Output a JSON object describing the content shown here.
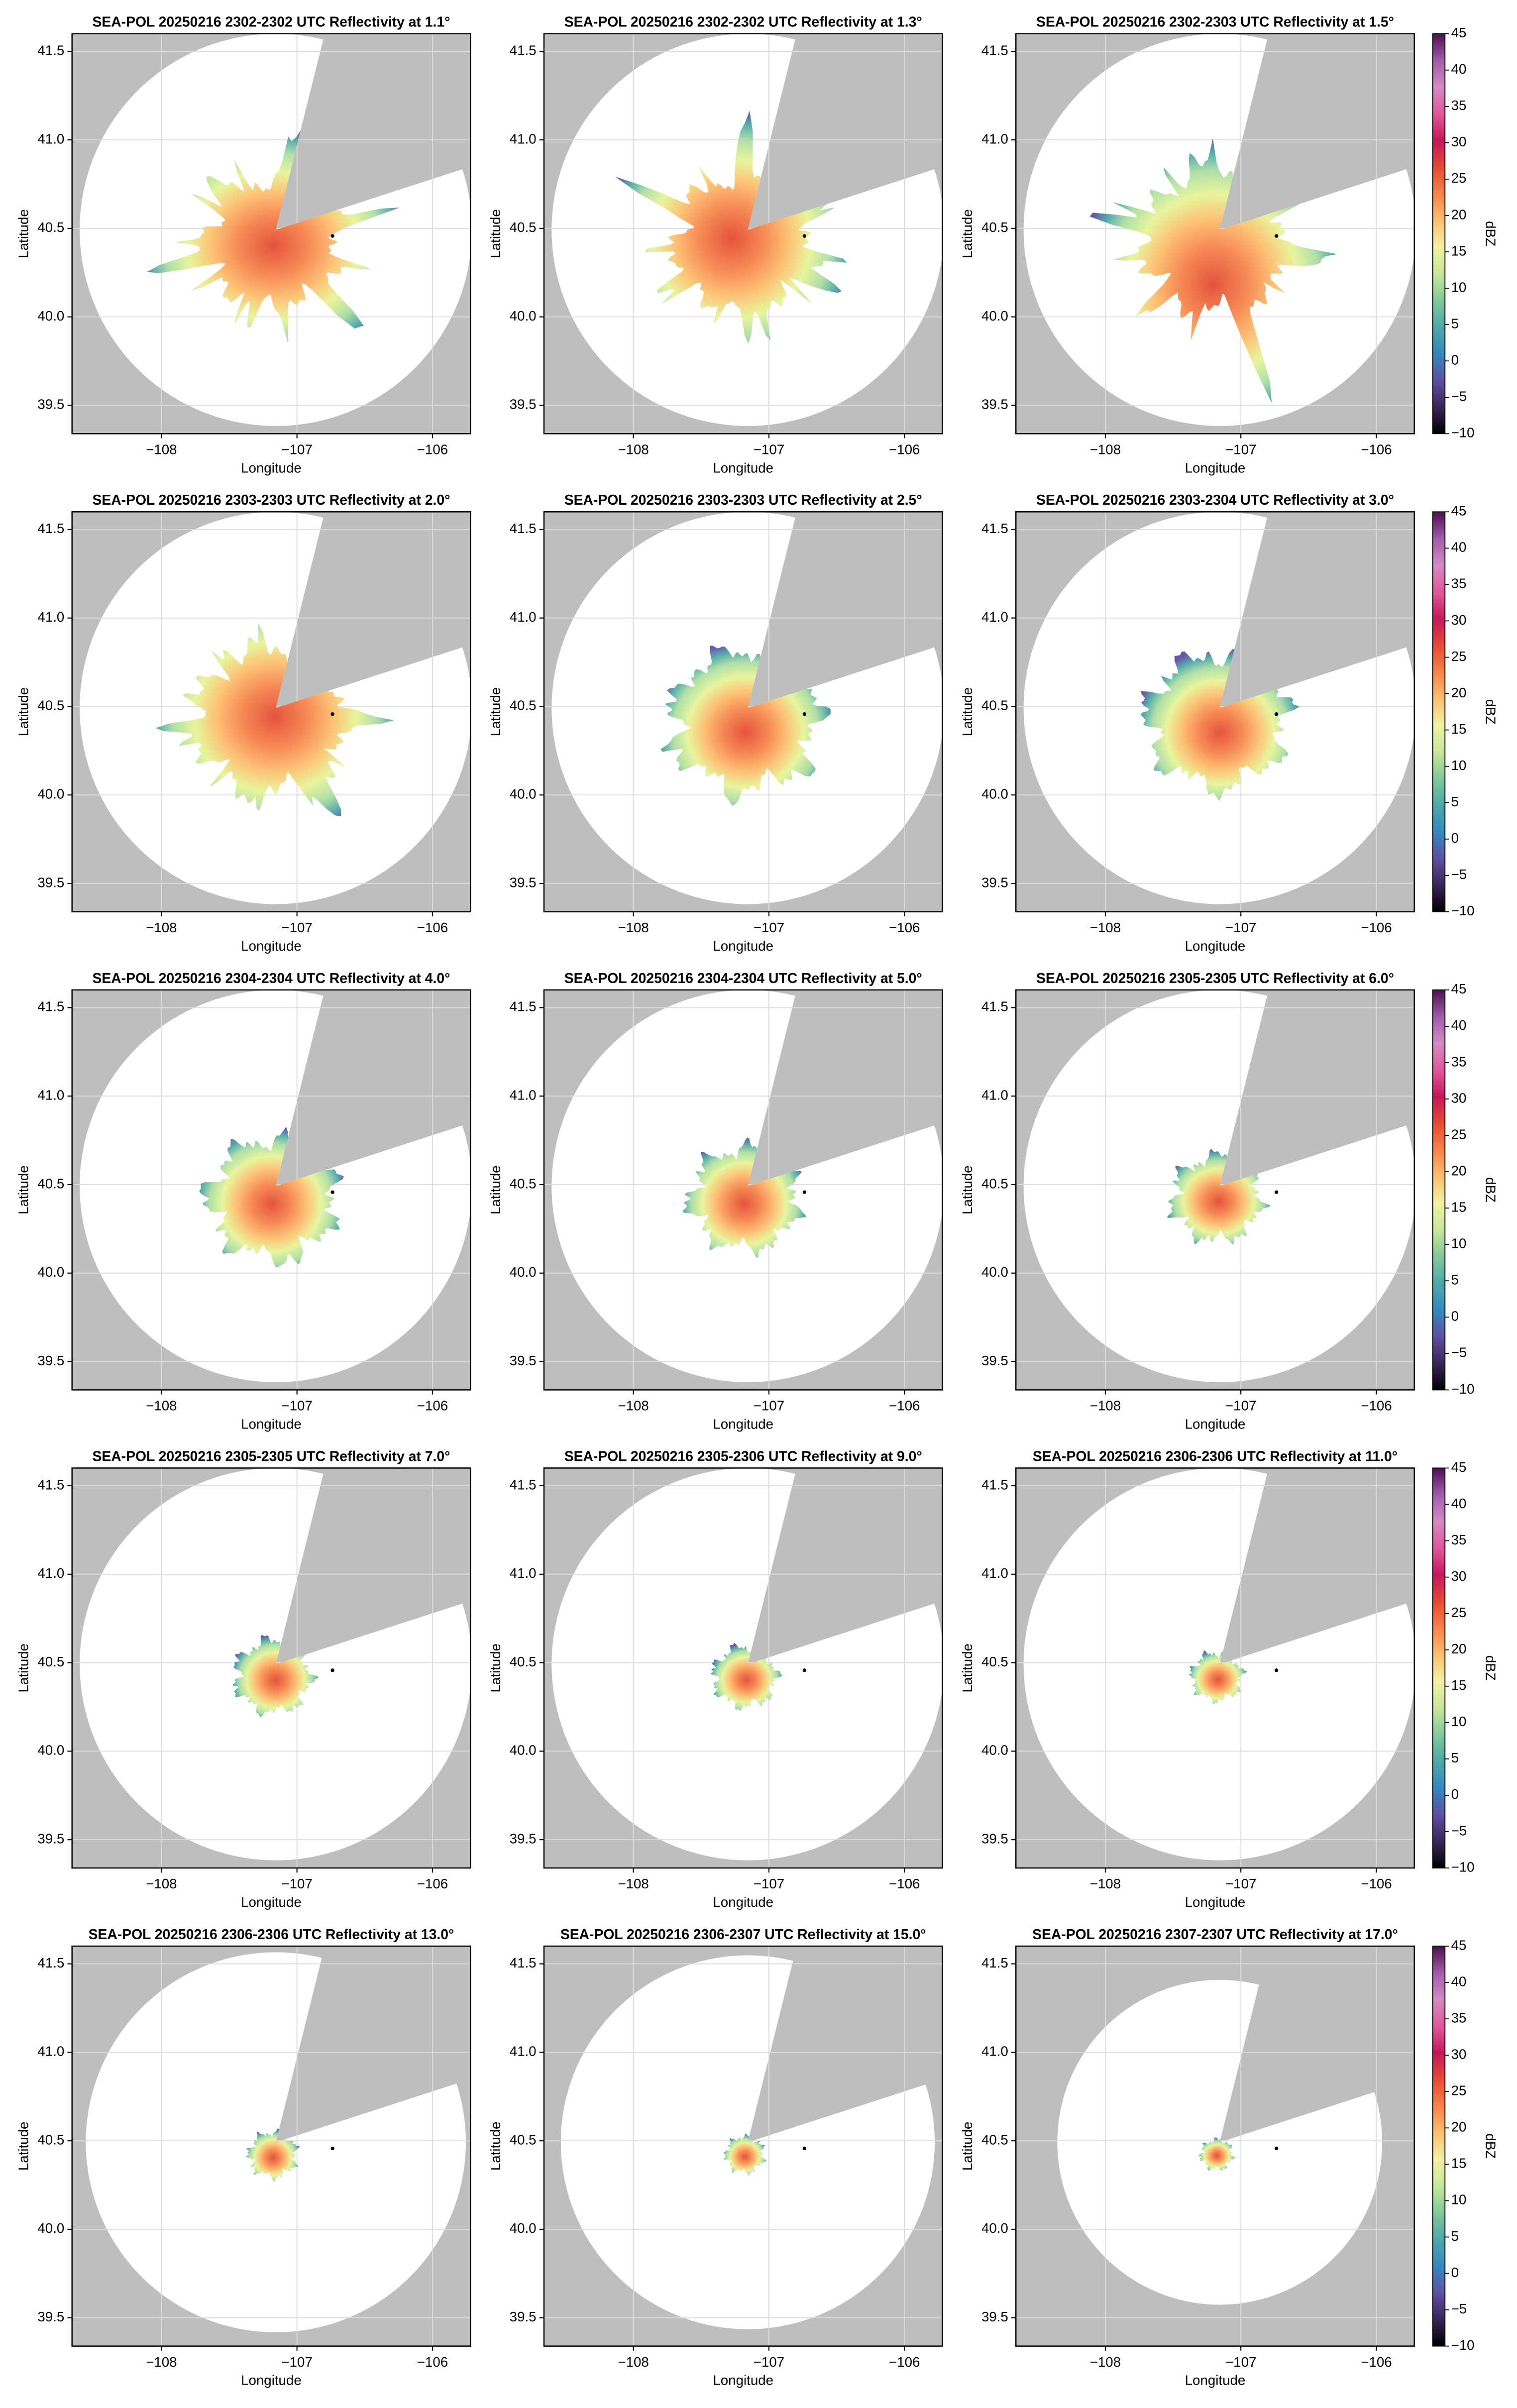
{
  "chart_data": [
    {
      "type": "radar-ppi",
      "title": "SEA-POL 20250216 2302-2302 UTC Reflectivity at 1.1°",
      "xlabel": "Longitude",
      "ylabel": "Latitude",
      "xlim": [
        -108.66,
        -105.72
      ],
      "ylim": [
        39.34,
        41.6
      ],
      "xticks": [
        {
          "value": -108,
          "label": "−108"
        },
        {
          "value": -107,
          "label": "−107"
        },
        {
          "value": -106,
          "label": "−106"
        }
      ],
      "yticks": [
        39.5,
        {
          "value": 40,
          "label": "40.0"
        },
        40.5,
        {
          "value": 41,
          "label": "41.0"
        },
        41.5
      ],
      "grid": true
    },
    {
      "type": "radar-ppi",
      "title": "SEA-POL 20250216 2302-2302 UTC Reflectivity at 1.3°",
      "xlabel": "Longitude",
      "ylabel": "Latitude",
      "xlim": [
        -108.66,
        -105.72
      ],
      "ylim": [
        39.34,
        41.6
      ],
      "xticks": [
        {
          "value": -108,
          "label": "−108"
        },
        {
          "value": -107,
          "label": "−107"
        },
        {
          "value": -106,
          "label": "−106"
        }
      ],
      "yticks": [
        39.5,
        {
          "value": 40,
          "label": "40.0"
        },
        40.5,
        {
          "value": 41,
          "label": "41.0"
        },
        41.5
      ],
      "grid": true
    },
    {
      "type": "radar-ppi",
      "title": "SEA-POL 20250216 2302-2303 UTC Reflectivity at 1.5°",
      "xlabel": "Longitude",
      "ylabel": "Latitude",
      "xlim": [
        -108.66,
        -105.72
      ],
      "ylim": [
        39.34,
        41.6
      ],
      "xticks": [
        {
          "value": -108,
          "label": "−108"
        },
        {
          "value": -107,
          "label": "−107"
        },
        {
          "value": -106,
          "label": "−106"
        }
      ],
      "yticks": [
        39.5,
        {
          "value": 40,
          "label": "40.0"
        },
        40.5,
        {
          "value": 41,
          "label": "41.0"
        },
        41.5
      ],
      "grid": true,
      "colorbar": {
        "label": "dBZ",
        "lim": [
          -10,
          45
        ],
        "ticks": [
          {
            "value": -10,
            "label": "−10"
          },
          {
            "value": -5,
            "label": "−5"
          },
          0,
          5,
          10,
          15,
          20,
          25,
          30,
          35,
          40,
          45
        ],
        "colors": [
          "#000000",
          "#3a2558",
          "#5e4fa2",
          "#3288bd",
          "#4fa8a8",
          "#85c99a",
          "#c8e79c",
          "#f1f3a6",
          "#fdc070",
          "#f6844c",
          "#e34a33",
          "#c2185b",
          "#e0589a",
          "#d48bc6",
          "#a05ba8",
          "#4b1150"
        ]
      }
    },
    {
      "type": "radar-ppi",
      "title": "SEA-POL 20250216 2303-2303 UTC Reflectivity at 2.0°",
      "xlabel": "Longitude",
      "ylabel": "Latitude",
      "xlim": [
        -108.66,
        -105.72
      ],
      "ylim": [
        39.34,
        41.6
      ],
      "xticks": [
        {
          "value": -108,
          "label": "−108"
        },
        {
          "value": -107,
          "label": "−107"
        },
        {
          "value": -106,
          "label": "−106"
        }
      ],
      "yticks": [
        39.5,
        {
          "value": 40,
          "label": "40.0"
        },
        40.5,
        {
          "value": 41,
          "label": "41.0"
        },
        41.5
      ],
      "grid": true
    },
    {
      "type": "radar-ppi",
      "title": "SEA-POL 20250216 2303-2303 UTC Reflectivity at 2.5°",
      "xlabel": "Longitude",
      "ylabel": "Latitude",
      "xlim": [
        -108.66,
        -105.72
      ],
      "ylim": [
        39.34,
        41.6
      ],
      "xticks": [
        {
          "value": -108,
          "label": "−108"
        },
        {
          "value": -107,
          "label": "−107"
        },
        {
          "value": -106,
          "label": "−106"
        }
      ],
      "yticks": [
        39.5,
        {
          "value": 40,
          "label": "40.0"
        },
        40.5,
        {
          "value": 41,
          "label": "41.0"
        },
        41.5
      ],
      "grid": true
    },
    {
      "type": "radar-ppi",
      "title": "SEA-POL 20250216 2303-2304 UTC Reflectivity at 3.0°",
      "xlabel": "Longitude",
      "ylabel": "Latitude",
      "xlim": [
        -108.66,
        -105.72
      ],
      "ylim": [
        39.34,
        41.6
      ],
      "xticks": [
        {
          "value": -108,
          "label": "−108"
        },
        {
          "value": -107,
          "label": "−107"
        },
        {
          "value": -106,
          "label": "−106"
        }
      ],
      "yticks": [
        39.5,
        {
          "value": 40,
          "label": "40.0"
        },
        40.5,
        {
          "value": 41,
          "label": "41.0"
        },
        41.5
      ],
      "grid": true,
      "colorbar": {
        "label": "dBZ",
        "lim": [
          -10,
          45
        ],
        "ticks": [
          {
            "value": -10,
            "label": "−10"
          },
          {
            "value": -5,
            "label": "−5"
          },
          0,
          5,
          10,
          15,
          20,
          25,
          30,
          35,
          40,
          45
        ],
        "colors": [
          "#000000",
          "#3a2558",
          "#5e4fa2",
          "#3288bd",
          "#4fa8a8",
          "#85c99a",
          "#c8e79c",
          "#f1f3a6",
          "#fdc070",
          "#f6844c",
          "#e34a33",
          "#c2185b",
          "#e0589a",
          "#d48bc6",
          "#a05ba8",
          "#4b1150"
        ]
      }
    },
    {
      "type": "radar-ppi",
      "title": "SEA-POL 20250216 2304-2304 UTC Reflectivity at 4.0°",
      "xlabel": "Longitude",
      "ylabel": "Latitude",
      "xlim": [
        -108.66,
        -105.72
      ],
      "ylim": [
        39.34,
        41.6
      ],
      "xticks": [
        {
          "value": -108,
          "label": "−108"
        },
        {
          "value": -107,
          "label": "−107"
        },
        {
          "value": -106,
          "label": "−106"
        }
      ],
      "yticks": [
        39.5,
        {
          "value": 40,
          "label": "40.0"
        },
        40.5,
        {
          "value": 41,
          "label": "41.0"
        },
        41.5
      ],
      "grid": true
    },
    {
      "type": "radar-ppi",
      "title": "SEA-POL 20250216 2304-2304 UTC Reflectivity at 5.0°",
      "xlabel": "Longitude",
      "ylabel": "Latitude",
      "xlim": [
        -108.66,
        -105.72
      ],
      "ylim": [
        39.34,
        41.6
      ],
      "xticks": [
        {
          "value": -108,
          "label": "−108"
        },
        {
          "value": -107,
          "label": "−107"
        },
        {
          "value": -106,
          "label": "−106"
        }
      ],
      "yticks": [
        39.5,
        {
          "value": 40,
          "label": "40.0"
        },
        40.5,
        {
          "value": 41,
          "label": "41.0"
        },
        41.5
      ],
      "grid": true
    },
    {
      "type": "radar-ppi",
      "title": "SEA-POL 20250216 2305-2305 UTC Reflectivity at 6.0°",
      "xlabel": "Longitude",
      "ylabel": "Latitude",
      "xlim": [
        -108.66,
        -105.72
      ],
      "ylim": [
        39.34,
        41.6
      ],
      "xticks": [
        {
          "value": -108,
          "label": "−108"
        },
        {
          "value": -107,
          "label": "−107"
        },
        {
          "value": -106,
          "label": "−106"
        }
      ],
      "yticks": [
        39.5,
        {
          "value": 40,
          "label": "40.0"
        },
        40.5,
        {
          "value": 41,
          "label": "41.0"
        },
        41.5
      ],
      "grid": true,
      "colorbar": {
        "label": "dBZ",
        "lim": [
          -10,
          45
        ],
        "ticks": [
          {
            "value": -10,
            "label": "−10"
          },
          {
            "value": -5,
            "label": "−5"
          },
          0,
          5,
          10,
          15,
          20,
          25,
          30,
          35,
          40,
          45
        ],
        "colors": [
          "#000000",
          "#3a2558",
          "#5e4fa2",
          "#3288bd",
          "#4fa8a8",
          "#85c99a",
          "#c8e79c",
          "#f1f3a6",
          "#fdc070",
          "#f6844c",
          "#e34a33",
          "#c2185b",
          "#e0589a",
          "#d48bc6",
          "#a05ba8",
          "#4b1150"
        ]
      }
    },
    {
      "type": "radar-ppi",
      "title": "SEA-POL 20250216 2305-2305 UTC Reflectivity at 7.0°",
      "xlabel": "Longitude",
      "ylabel": "Latitude",
      "xlim": [
        -108.66,
        -105.72
      ],
      "ylim": [
        39.34,
        41.6
      ],
      "xticks": [
        {
          "value": -108,
          "label": "−108"
        },
        {
          "value": -107,
          "label": "−107"
        },
        {
          "value": -106,
          "label": "−106"
        }
      ],
      "yticks": [
        39.5,
        {
          "value": 40,
          "label": "40.0"
        },
        40.5,
        {
          "value": 41,
          "label": "41.0"
        },
        41.5
      ],
      "grid": true
    },
    {
      "type": "radar-ppi",
      "title": "SEA-POL 20250216 2305-2306 UTC Reflectivity at 9.0°",
      "xlabel": "Longitude",
      "ylabel": "Latitude",
      "xlim": [
        -108.66,
        -105.72
      ],
      "ylim": [
        39.34,
        41.6
      ],
      "xticks": [
        {
          "value": -108,
          "label": "−108"
        },
        {
          "value": -107,
          "label": "−107"
        },
        {
          "value": -106,
          "label": "−106"
        }
      ],
      "yticks": [
        39.5,
        {
          "value": 40,
          "label": "40.0"
        },
        40.5,
        {
          "value": 41,
          "label": "41.0"
        },
        41.5
      ],
      "grid": true
    },
    {
      "type": "radar-ppi",
      "title": "SEA-POL 20250216 2306-2306 UTC Reflectivity at 11.0°",
      "xlabel": "Longitude",
      "ylabel": "Latitude",
      "xlim": [
        -108.66,
        -105.72
      ],
      "ylim": [
        39.34,
        41.6
      ],
      "xticks": [
        {
          "value": -108,
          "label": "−108"
        },
        {
          "value": -107,
          "label": "−107"
        },
        {
          "value": -106,
          "label": "−106"
        }
      ],
      "yticks": [
        39.5,
        {
          "value": 40,
          "label": "40.0"
        },
        40.5,
        {
          "value": 41,
          "label": "41.0"
        },
        41.5
      ],
      "grid": true,
      "colorbar": {
        "label": "dBZ",
        "lim": [
          -10,
          45
        ],
        "ticks": [
          {
            "value": -10,
            "label": "−10"
          },
          {
            "value": -5,
            "label": "−5"
          },
          0,
          5,
          10,
          15,
          20,
          25,
          30,
          35,
          40,
          45
        ],
        "colors": [
          "#000000",
          "#3a2558",
          "#5e4fa2",
          "#3288bd",
          "#4fa8a8",
          "#85c99a",
          "#c8e79c",
          "#f1f3a6",
          "#fdc070",
          "#f6844c",
          "#e34a33",
          "#c2185b",
          "#e0589a",
          "#d48bc6",
          "#a05ba8",
          "#4b1150"
        ]
      }
    },
    {
      "type": "radar-ppi",
      "title": "SEA-POL 20250216 2306-2306 UTC Reflectivity at 13.0°",
      "xlabel": "Longitude",
      "ylabel": "Latitude",
      "xlim": [
        -108.66,
        -105.72
      ],
      "ylim": [
        39.34,
        41.6
      ],
      "xticks": [
        {
          "value": -108,
          "label": "−108"
        },
        {
          "value": -107,
          "label": "−107"
        },
        {
          "value": -106,
          "label": "−106"
        }
      ],
      "yticks": [
        39.5,
        {
          "value": 40,
          "label": "40.0"
        },
        40.5,
        {
          "value": 41,
          "label": "41.0"
        },
        41.5
      ],
      "grid": true
    },
    {
      "type": "radar-ppi",
      "title": "SEA-POL 20250216 2306-2307 UTC Reflectivity at 15.0°",
      "xlabel": "Longitude",
      "ylabel": "Latitude",
      "xlim": [
        -108.66,
        -105.72
      ],
      "ylim": [
        39.34,
        41.6
      ],
      "xticks": [
        {
          "value": -108,
          "label": "−108"
        },
        {
          "value": -107,
          "label": "−107"
        },
        {
          "value": -106,
          "label": "−106"
        }
      ],
      "yticks": [
        39.5,
        {
          "value": 40,
          "label": "40.0"
        },
        40.5,
        {
          "value": 41,
          "label": "41.0"
        },
        41.5
      ],
      "grid": true
    },
    {
      "type": "radar-ppi",
      "title": "SEA-POL 20250216 2307-2307 UTC Reflectivity at 17.0°",
      "xlabel": "Longitude",
      "ylabel": "Latitude",
      "xlim": [
        -108.66,
        -105.72
      ],
      "ylim": [
        39.34,
        41.6
      ],
      "xticks": [
        {
          "value": -108,
          "label": "−108"
        },
        {
          "value": -107,
          "label": "−107"
        },
        {
          "value": -106,
          "label": "−106"
        }
      ],
      "yticks": [
        39.5,
        {
          "value": 40,
          "label": "40.0"
        },
        40.5,
        {
          "value": 41,
          "label": "41.0"
        },
        41.5
      ],
      "grid": true,
      "colorbar": {
        "label": "dBZ",
        "lim": [
          -10,
          45
        ],
        "ticks": [
          {
            "value": -10,
            "label": "−10"
          },
          {
            "value": -5,
            "label": "−5"
          },
          0,
          5,
          10,
          15,
          20,
          25,
          30,
          35,
          40,
          45
        ],
        "colors": [
          "#000000",
          "#3a2558",
          "#5e4fa2",
          "#3288bd",
          "#4fa8a8",
          "#85c99a",
          "#c8e79c",
          "#f1f3a6",
          "#fdc070",
          "#f6844c",
          "#e34a33",
          "#c2185b",
          "#e0589a",
          "#d48bc6",
          "#a05ba8",
          "#4b1150"
        ]
      }
    }
  ]
}
